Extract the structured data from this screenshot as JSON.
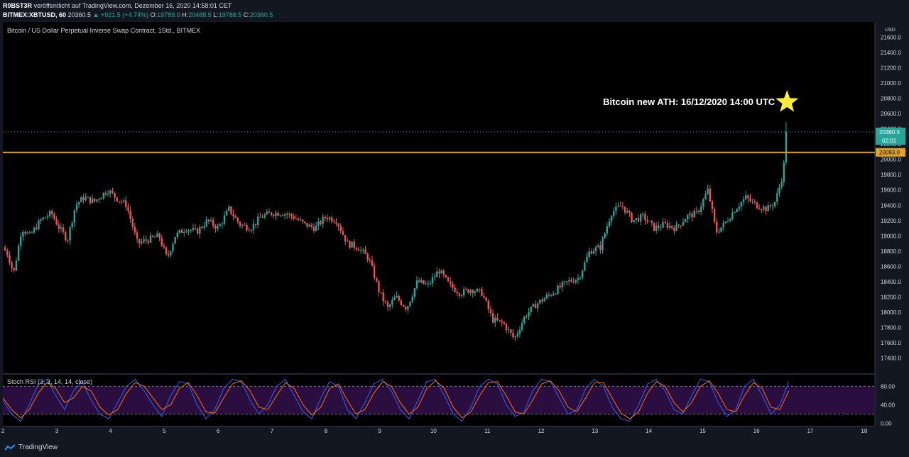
{
  "header": {
    "author": "R0BST3R",
    "published_text": "veröffentlicht auf TradingView.com, Dezember 16, 2020 14:58:01 CET",
    "symbol": "BITMEX:XBTUSD, 60",
    "last": "20360.5",
    "change": "+921.5 (+4.74%)",
    "open_label": "O:",
    "open": "19789.0",
    "high_label": "H:",
    "high": "20488.5",
    "low_label": "L:",
    "low": "19788.5",
    "close_label": "C:",
    "close": "20360.5"
  },
  "footer": {
    "brand": "TradingView"
  },
  "colors": {
    "bg": "#000000",
    "up": "#26a69a",
    "down": "#ef5350",
    "hline": "#e0a525",
    "star": "#ffeb3b"
  },
  "chart_data": {
    "type": "candlestick",
    "title": "Bitcoin / US Dollar Perpetual Inverse Swap Contract, 1Std., BITMEX",
    "currency": "USD",
    "ylim": [
      17200,
      21800
    ],
    "y_ticks": [
      17400,
      17600,
      17800,
      18000,
      18200,
      18400,
      18600,
      18800,
      19000,
      19200,
      19400,
      19600,
      19800,
      20000,
      20200,
      20400,
      20600,
      20800,
      21000,
      21200,
      21400,
      21600
    ],
    "x_ticks": [
      "2",
      "3",
      "4",
      "5",
      "6",
      "7",
      "8",
      "9",
      "10",
      "11",
      "12",
      "13",
      "14",
      "15",
      "16",
      "17",
      "18"
    ],
    "x_range": [
      2,
      18.2
    ],
    "price_path": [
      [
        2.0,
        18850
      ],
      [
        2.1,
        18750
      ],
      [
        2.2,
        18500
      ],
      [
        2.35,
        19100
      ],
      [
        2.5,
        19000
      ],
      [
        2.7,
        19200
      ],
      [
        2.9,
        19300
      ],
      [
        3.05,
        19100
      ],
      [
        3.2,
        18950
      ],
      [
        3.35,
        19400
      ],
      [
        3.5,
        19500
      ],
      [
        3.7,
        19450
      ],
      [
        3.95,
        19600
      ],
      [
        4.1,
        19500
      ],
      [
        4.3,
        19400
      ],
      [
        4.5,
        18900
      ],
      [
        4.7,
        18950
      ],
      [
        4.9,
        19000
      ],
      [
        5.05,
        18700
      ],
      [
        5.2,
        19000
      ],
      [
        5.4,
        19100
      ],
      [
        5.6,
        19050
      ],
      [
        5.8,
        19200
      ],
      [
        6.0,
        19100
      ],
      [
        6.2,
        19350
      ],
      [
        6.4,
        19150
      ],
      [
        6.6,
        19100
      ],
      [
        6.8,
        19250
      ],
      [
        7.0,
        19300
      ],
      [
        7.2,
        19300
      ],
      [
        7.4,
        19250
      ],
      [
        7.6,
        19150
      ],
      [
        7.8,
        19100
      ],
      [
        8.0,
        19250
      ],
      [
        8.2,
        19200
      ],
      [
        8.4,
        18900
      ],
      [
        8.6,
        18850
      ],
      [
        8.8,
        18700
      ],
      [
        9.0,
        18250
      ],
      [
        9.15,
        18050
      ],
      [
        9.3,
        18200
      ],
      [
        9.5,
        18050
      ],
      [
        9.7,
        18400
      ],
      [
        9.9,
        18350
      ],
      [
        10.1,
        18550
      ],
      [
        10.3,
        18350
      ],
      [
        10.5,
        18250
      ],
      [
        10.7,
        18300
      ],
      [
        10.9,
        18250
      ],
      [
        11.1,
        17900
      ],
      [
        11.3,
        17850
      ],
      [
        11.5,
        17650
      ],
      [
        11.7,
        17950
      ],
      [
        11.9,
        18100
      ],
      [
        12.1,
        18200
      ],
      [
        12.3,
        18300
      ],
      [
        12.5,
        18400
      ],
      [
        12.7,
        18450
      ],
      [
        12.9,
        18800
      ],
      [
        13.1,
        18850
      ],
      [
        13.3,
        19300
      ],
      [
        13.5,
        19400
      ],
      [
        13.7,
        19200
      ],
      [
        13.9,
        19250
      ],
      [
        14.1,
        19100
      ],
      [
        14.3,
        19150
      ],
      [
        14.5,
        19100
      ],
      [
        14.7,
        19250
      ],
      [
        14.9,
        19300
      ],
      [
        15.1,
        19600
      ],
      [
        15.25,
        19050
      ],
      [
        15.4,
        19150
      ],
      [
        15.6,
        19350
      ],
      [
        15.8,
        19500
      ],
      [
        16.0,
        19400
      ],
      [
        16.2,
        19350
      ],
      [
        16.35,
        19450
      ],
      [
        16.45,
        19700
      ],
      [
        16.5,
        19850
      ],
      [
        16.55,
        20360
      ]
    ],
    "last_price": 20360.5,
    "last_price_label": "20360.5",
    "countdown_label": "02:01",
    "horizontal_line": {
      "value": 20093.0,
      "label": "20093.0"
    },
    "annotation": {
      "text": "Bitcoin new ATH: 16/12/2020 14:00 UTC",
      "anchor_x": 16.58,
      "anchor_y": 20500
    },
    "indicator": {
      "name": "Stoch RSI (3, 3, 14, 14, close)",
      "ylim": [
        -5,
        105
      ],
      "y_ticks": [
        0,
        40,
        80
      ],
      "y_tick_labels": [
        "0.00",
        "40.00",
        "80.00"
      ],
      "band": [
        20,
        80
      ],
      "k_series": [
        50,
        20,
        5,
        40,
        85,
        95,
        60,
        30,
        70,
        90,
        50,
        20,
        10,
        45,
        80,
        95,
        70,
        40,
        15,
        60,
        90,
        85,
        40,
        10,
        30,
        75,
        95,
        90,
        50,
        20,
        40,
        80,
        95,
        60,
        25,
        10,
        55,
        90,
        80,
        30,
        10,
        45,
        85,
        95,
        70,
        30,
        10,
        50,
        90,
        95,
        60,
        20,
        5,
        35,
        80,
        95,
        85,
        40,
        15,
        25,
        70,
        95,
        90,
        55,
        20,
        30,
        75,
        95,
        80,
        35,
        10,
        5,
        40,
        85,
        95,
        70,
        30,
        20,
        60,
        95,
        90,
        45,
        15,
        30,
        80,
        95,
        60,
        20,
        40,
        90
      ],
      "d_series": [
        55,
        30,
        12,
        30,
        65,
        88,
        75,
        45,
        55,
        80,
        70,
        35,
        18,
        30,
        65,
        88,
        80,
        55,
        30,
        40,
        75,
        88,
        60,
        25,
        22,
        55,
        85,
        92,
        70,
        35,
        30,
        60,
        88,
        75,
        40,
        18,
        35,
        75,
        85,
        50,
        20,
        30,
        65,
        90,
        80,
        45,
        20,
        35,
        75,
        92,
        75,
        35,
        12,
        25,
        60,
        88,
        90,
        60,
        25,
        20,
        50,
        85,
        92,
        70,
        35,
        25,
        55,
        88,
        88,
        55,
        22,
        10,
        25,
        65,
        90,
        80,
        45,
        25,
        45,
        80,
        92,
        65,
        30,
        25,
        60,
        88,
        75,
        35,
        30,
        70
      ]
    }
  }
}
